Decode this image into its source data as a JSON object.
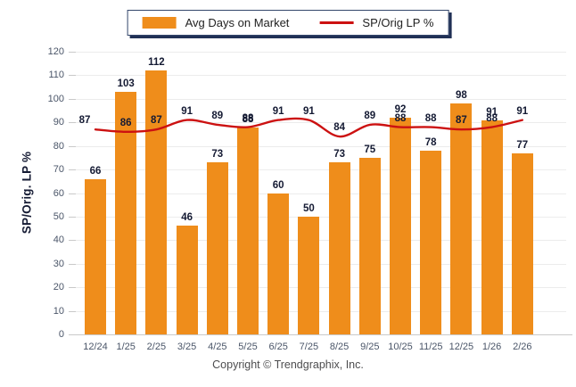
{
  "legend": {
    "bar_label": "Avg Days on Market",
    "line_label": "SP/Orig LP %"
  },
  "footer": {
    "copyright": "Copyright © Trendgraphix, Inc."
  },
  "colors": {
    "bar": "#ef8d1b",
    "line": "#cc1111",
    "value_label": "#141a33",
    "tick_text": "#4a5568",
    "grid": "#ececec",
    "axis": "#c9c9c9",
    "legend_border": "#33466b",
    "legend_shadow": "#203055"
  },
  "chart_data": {
    "type": "bar",
    "subtype": "bar+line combo",
    "categories": [
      "12/24",
      "1/25",
      "2/25",
      "3/25",
      "4/25",
      "5/25",
      "6/25",
      "7/25",
      "8/25",
      "9/25",
      "10/25",
      "11/25",
      "12/25",
      "1/26",
      "2/26"
    ],
    "series": [
      {
        "name": "Avg Days on Market",
        "type": "bar",
        "color": "#ef8d1b",
        "values": [
          66,
          103,
          112,
          46,
          73,
          88,
          60,
          50,
          73,
          75,
          92,
          78,
          98,
          91,
          77
        ]
      },
      {
        "name": "SP/Orig LP %",
        "type": "line",
        "color": "#cc1111",
        "values": [
          87,
          86,
          87,
          91,
          89,
          88,
          91,
          91,
          84,
          89,
          88,
          88,
          87,
          88,
          91
        ]
      }
    ],
    "title": "",
    "xlabel": "",
    "ylabel": "SP/Orig. LP %",
    "ylim": [
      0,
      120
    ],
    "ytick_step": 10,
    "grid": "horizontal",
    "legend_position": "top-center",
    "data_labels": true
  }
}
